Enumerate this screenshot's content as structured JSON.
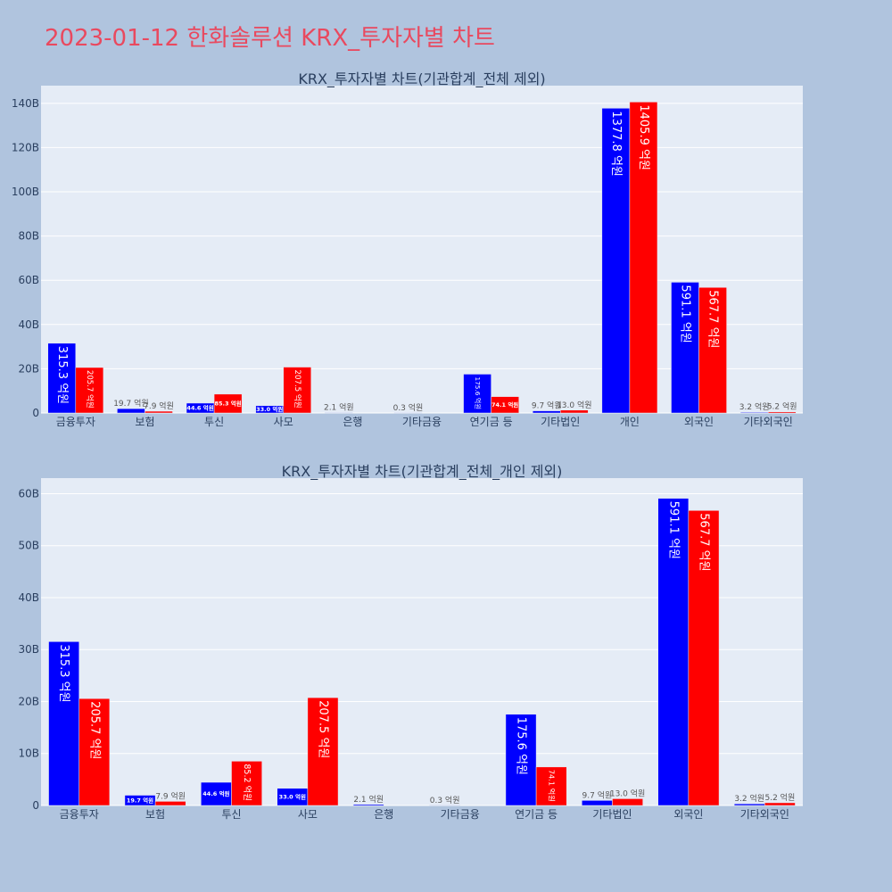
{
  "page_title": "2023-01-12 한화솔루션 KRX_투자자별 차트",
  "colors": {
    "background": "#b0c4de",
    "plot_bg": "#e5ecf6",
    "title": "#e9495f",
    "buy": "#0000ff",
    "sell": "#ff0000",
    "text": "#2a3f5f"
  },
  "chart_data": [
    {
      "type": "bar",
      "title": "KRX_투자자별 차트(기관합계_전체 제외)",
      "categories": [
        "금융투자",
        "보험",
        "투신",
        "사모",
        "은행",
        "기타금융",
        "연기금 등",
        "기타법인",
        "개인",
        "외국인",
        "기타외국인"
      ],
      "series": [
        {
          "color": "#0000ff",
          "values": [
            31.53,
            1.97,
            4.46,
            3.3,
            0.21,
            0.03,
            17.56,
            0.97,
            137.78,
            59.11,
            0.32
          ],
          "labels": [
            "315.3 억원",
            "19.7 억원",
            "44.6 억원",
            "33.0 억원",
            "2.1 억원",
            "0.3 억원",
            "175.6 억원",
            "9.7 억원",
            "1377.8 억원",
            "591.1 억원",
            "3.2 억원"
          ]
        },
        {
          "color": "#ff0000",
          "values": [
            20.57,
            0.79,
            8.53,
            20.75,
            0,
            0,
            7.41,
            1.3,
            140.59,
            56.77,
            0.52
          ],
          "labels": [
            "205.7 억원",
            "7.9 억원",
            "85.3 억원",
            "207.5 억원",
            "",
            "",
            "74.1 억원",
            "13.0 억원",
            "1405.9 억원",
            "567.7 억원",
            "5.2 억원"
          ]
        }
      ],
      "yticks": [
        0,
        20,
        40,
        60,
        80,
        100,
        120,
        140
      ],
      "ytick_labels": [
        "0",
        "20B",
        "40B",
        "60B",
        "80B",
        "100B",
        "120B",
        "140B"
      ],
      "ylim": [
        0,
        148
      ]
    },
    {
      "type": "bar",
      "title": "KRX_투자자별 차트(기관합계_전체_개인 제외)",
      "categories": [
        "금융투자",
        "보험",
        "투신",
        "사모",
        "은행",
        "기타금융",
        "연기금 등",
        "기타법인",
        "외국인",
        "기타외국인"
      ],
      "series": [
        {
          "color": "#0000ff",
          "values": [
            31.53,
            1.97,
            4.46,
            3.3,
            0.21,
            0.03,
            17.56,
            0.97,
            59.11,
            0.32
          ],
          "labels": [
            "315.3 억원",
            "19.7 억원",
            "44.6 억원",
            "33.0 억원",
            "2.1 억원",
            "0.3 억원",
            "175.6 억원",
            "9.7 억원",
            "591.1 억원",
            "3.2 억원"
          ]
        },
        {
          "color": "#ff0000",
          "values": [
            20.57,
            0.79,
            8.52,
            20.75,
            0,
            0,
            7.41,
            1.3,
            56.77,
            0.52
          ],
          "labels": [
            "205.7 억원",
            "7.9 억원",
            "85.2 억원",
            "207.5 억원",
            "",
            "",
            "74.1 억원",
            "13.0 억원",
            "567.7 억원",
            "5.2 억원"
          ]
        }
      ],
      "yticks": [
        0,
        10,
        20,
        30,
        40,
        50,
        60
      ],
      "ytick_labels": [
        "0",
        "10B",
        "20B",
        "30B",
        "40B",
        "50B",
        "60B"
      ],
      "ylim": [
        0,
        63
      ]
    }
  ]
}
